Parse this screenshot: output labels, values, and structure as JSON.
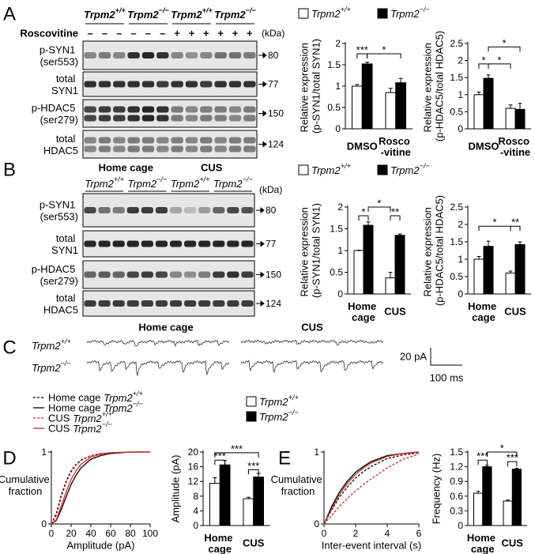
{
  "panels": [
    "A",
    "B",
    "C",
    "D",
    "E"
  ],
  "blot_A": {
    "genotypes": [
      "Trpm2+/+",
      "Trpm2−/−",
      "Trpm2+/+",
      "Trpm2−/−"
    ],
    "treatment_label": "Roscovitine",
    "treatment": [
      "–",
      "–",
      "–",
      "–",
      "–",
      "–",
      "+",
      "+",
      "+",
      "+",
      "+",
      "+"
    ],
    "unit": "(kDa)",
    "rows": [
      {
        "label": "p-SYN1 (ser553)",
        "marker": 80
      },
      {
        "label": "total SYN1",
        "marker": 77
      },
      {
        "label": "p-HDAC5 (ser279)",
        "marker": 150
      },
      {
        "label": "total HDAC5",
        "marker": 124
      }
    ]
  },
  "blot_B": {
    "conditions": [
      "Home cage",
      "CUS"
    ],
    "genotypes": [
      "Trpm2+/+",
      "Trpm2−/−",
      "Trpm2+/+",
      "Trpm2−/−"
    ],
    "unit": "(kDa)",
    "rows": [
      {
        "label": "p-SYN1 (ser553)",
        "marker": 80
      },
      {
        "label": "total SYN1",
        "marker": 77
      },
      {
        "label": "p-HDAC5 (ser279)",
        "marker": 150
      },
      {
        "label": "total HDAC5",
        "marker": 124
      }
    ]
  },
  "traces": {
    "conditions": [
      "Home cage",
      "CUS"
    ],
    "genotypes": [
      "Trpm2+/+",
      "Trpm2−/−"
    ],
    "scale_y": "20 pA",
    "scale_x": "100 ms"
  },
  "chart_data": [
    {
      "type": "bar",
      "ylabel": "Relative expression (p-SYN1/total SYN1)",
      "categories": [
        "DMSO",
        "Rosco -vitine"
      ],
      "series": [
        {
          "name": "Trpm2+/+",
          "color": "#ffffff",
          "values": [
            1.0,
            0.85
          ],
          "errors": [
            0.04,
            0.1
          ]
        },
        {
          "name": "Trpm2−/−",
          "color": "#000000",
          "values": [
            1.52,
            1.08
          ],
          "errors": [
            0.04,
            0.1
          ]
        }
      ],
      "ylim": [
        0,
        2
      ],
      "yticks": [
        0,
        0.5,
        1,
        1.5,
        2
      ],
      "annotations": [
        "***",
        "*"
      ]
    },
    {
      "type": "bar",
      "ylabel": "Relative expression (p-HDAC5/total HDAC5)",
      "categories": [
        "DMSO",
        "Rosco -vitine"
      ],
      "series": [
        {
          "color": "#ffffff",
          "values": [
            1.0,
            0.6
          ],
          "errors": [
            0.08,
            0.1
          ]
        },
        {
          "color": "#000000",
          "values": [
            1.48,
            0.57
          ],
          "errors": [
            0.1,
            0.18
          ]
        }
      ],
      "ylim": [
        0,
        2.5
      ],
      "yticks": [
        0,
        0.5,
        1,
        1.5,
        2,
        2.5
      ],
      "annotations": [
        "*",
        "*",
        "*"
      ]
    },
    {
      "type": "bar",
      "ylabel": "Relative expression (p-SYN1/total SYN1)",
      "categories": [
        "Home cage",
        "CUS"
      ],
      "series": [
        {
          "name": "Trpm2+/+",
          "color": "#ffffff",
          "values": [
            1.0,
            0.37
          ],
          "errors": [
            0.01,
            0.13
          ]
        },
        {
          "name": "Trpm2−/−",
          "color": "#000000",
          "values": [
            1.58,
            1.35
          ],
          "errors": [
            0.08,
            0.03
          ]
        }
      ],
      "ylim": [
        0,
        2
      ],
      "yticks": [
        0,
        0.5,
        1,
        1.5,
        2
      ],
      "annotations": [
        "*",
        "*",
        "**"
      ]
    },
    {
      "type": "bar",
      "ylabel": "Relative expression (p-HDAC5/total HDAC5)",
      "categories": [
        "Home cage",
        "CUS"
      ],
      "series": [
        {
          "color": "#ffffff",
          "values": [
            1.0,
            0.6
          ],
          "errors": [
            0.08,
            0.06
          ]
        },
        {
          "color": "#000000",
          "values": [
            1.37,
            1.42
          ],
          "errors": [
            0.15,
            0.08
          ]
        }
      ],
      "ylim": [
        0,
        2.5
      ],
      "yticks": [
        0,
        0.5,
        1,
        1.5,
        2,
        2.5
      ],
      "annotations": [
        "*",
        "**"
      ]
    },
    {
      "type": "line",
      "xlabel": "Amplitude (pA)",
      "ylabel": "Cumulative fraction",
      "x": [
        0,
        5,
        10,
        15,
        20,
        25,
        30,
        40,
        50,
        60,
        80,
        100
      ],
      "series": [
        {
          "name": "Home cage Trpm2+/+",
          "color": "#000000",
          "dashed": true,
          "values": [
            0,
            0.15,
            0.4,
            0.6,
            0.74,
            0.83,
            0.89,
            0.95,
            0.98,
            0.99,
            1,
            1
          ]
        },
        {
          "name": "Home cage Trpm2−/−",
          "color": "#000000",
          "dashed": false,
          "values": [
            0,
            0.05,
            0.2,
            0.38,
            0.55,
            0.68,
            0.78,
            0.9,
            0.95,
            0.98,
            1,
            1
          ]
        },
        {
          "name": "CUS Trpm2+/+",
          "color": "#d62728",
          "dashed": true,
          "values": [
            0,
            0.12,
            0.37,
            0.58,
            0.72,
            0.82,
            0.88,
            0.95,
            0.98,
            0.99,
            1,
            1
          ]
        },
        {
          "name": "CUS Trpm2−/−",
          "color": "#d62728",
          "dashed": false,
          "values": [
            0,
            0.06,
            0.25,
            0.45,
            0.62,
            0.74,
            0.83,
            0.93,
            0.97,
            0.99,
            1,
            1
          ]
        }
      ],
      "xlim": [
        0,
        100
      ],
      "xticks": [
        0,
        20,
        40,
        60,
        80,
        100
      ],
      "ylim": [
        0,
        1
      ],
      "yticks": [
        0,
        1
      ]
    },
    {
      "type": "bar",
      "ylabel": "Amplitude (pA)",
      "categories": [
        "Home cage",
        "CUS"
      ],
      "series": [
        {
          "name": "Trpm2+/+",
          "color": "#ffffff",
          "values": [
            11.5,
            7.3
          ],
          "errors": [
            1.5,
            0.4
          ]
        },
        {
          "name": "Trpm2−/−",
          "color": "#000000",
          "values": [
            16.5,
            13.2
          ],
          "errors": [
            1.2,
            1.0
          ]
        }
      ],
      "ylim": [
        0,
        20
      ],
      "yticks": [
        0,
        4,
        8,
        12,
        16,
        20
      ],
      "annotations": [
        "***",
        "***",
        "***"
      ]
    },
    {
      "type": "line",
      "xlabel": "Inter-event interval (s)",
      "ylabel": "Cumulative fraction",
      "x": [
        0,
        0.5,
        1,
        1.5,
        2,
        2.5,
        3,
        4,
        5,
        6
      ],
      "series": [
        {
          "color": "#000000",
          "dashed": true,
          "values": [
            0,
            0.2,
            0.38,
            0.52,
            0.64,
            0.73,
            0.8,
            0.91,
            0.96,
            0.99
          ]
        },
        {
          "color": "#000000",
          "dashed": false,
          "values": [
            0,
            0.25,
            0.45,
            0.6,
            0.72,
            0.8,
            0.87,
            0.95,
            0.98,
            1
          ]
        },
        {
          "color": "#d62728",
          "dashed": true,
          "values": [
            0,
            0.12,
            0.25,
            0.36,
            0.46,
            0.55,
            0.63,
            0.78,
            0.9,
            0.97
          ]
        },
        {
          "color": "#d62728",
          "dashed": false,
          "values": [
            0,
            0.22,
            0.42,
            0.57,
            0.69,
            0.78,
            0.85,
            0.94,
            0.98,
            1
          ]
        }
      ],
      "xlim": [
        0,
        6
      ],
      "xticks": [
        0,
        2,
        4,
        6
      ],
      "ylim": [
        0,
        1
      ],
      "yticks": [
        0,
        1
      ]
    },
    {
      "type": "bar",
      "ylabel": "Frequency (Hz)",
      "categories": [
        "Home cage",
        "CUS"
      ],
      "series": [
        {
          "color": "#ffffff",
          "values": [
            0.66,
            0.5
          ],
          "errors": [
            0.04,
            0.02
          ]
        },
        {
          "color": "#000000",
          "values": [
            1.2,
            1.15
          ],
          "errors": [
            0.03,
            0.02
          ]
        }
      ],
      "ylim": [
        0,
        1.5
      ],
      "yticks": [
        0,
        0.3,
        0.6,
        0.9,
        1.2,
        1.5
      ],
      "annotations": [
        "*",
        "***",
        "***"
      ]
    }
  ]
}
